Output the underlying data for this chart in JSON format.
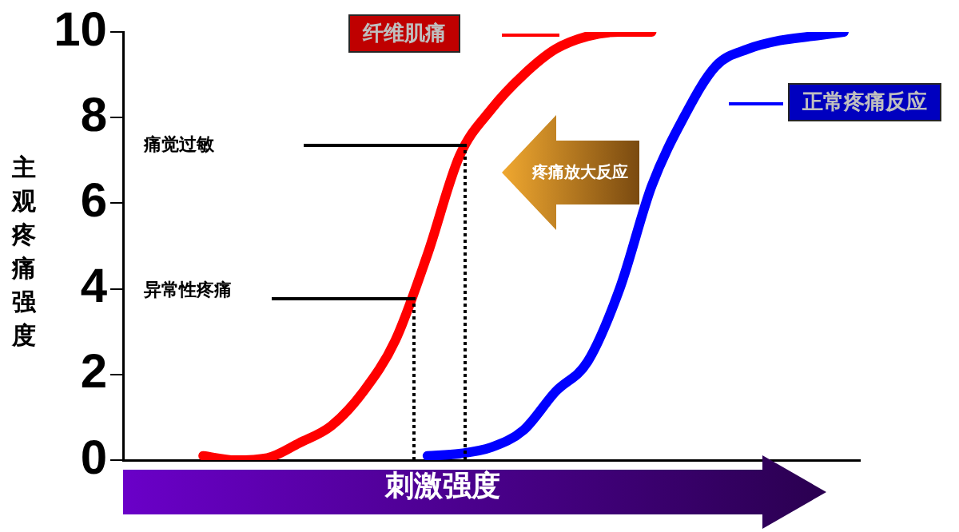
{
  "chart_data": {
    "type": "line",
    "xlabel": "刺激强度",
    "ylabel": "主观疼痛强度",
    "categories": [
      null,
      null,
      null,
      null,
      null,
      null,
      null,
      null,
      null,
      null,
      null,
      null,
      null,
      null,
      null,
      null,
      null,
      null,
      null,
      null,
      null,
      null,
      null
    ],
    "series": [
      {
        "name": "纤维肌痛",
        "color": "#ff0000",
        "values": [
          null,
          null,
          0.1,
          0,
          0.05,
          0.4,
          0.8,
          1.6,
          2.8,
          4.8,
          7.1,
          8.2,
          9.0,
          9.6,
          9.9,
          10,
          10,
          null,
          null,
          null,
          null,
          null,
          null
        ]
      },
      {
        "name": "正常疼痛反应",
        "color": "#0000ff",
        "values": [
          null,
          null,
          null,
          null,
          null,
          null,
          null,
          null,
          null,
          0.1,
          0.15,
          0.3,
          0.7,
          1.6,
          2.3,
          4.0,
          6.4,
          8.0,
          9.2,
          9.6,
          9.8,
          9.9,
          10
        ]
      }
    ],
    "ylim": [
      0,
      10
    ],
    "yticks": [
      0,
      2,
      4,
      6,
      8,
      10
    ],
    "grid": false,
    "legend": "top right",
    "marker": "none",
    "line_style": "solid",
    "annotations": [
      "痛觉过敏",
      "异常性疼痛",
      "疼痛放大反应"
    ]
  }
}
